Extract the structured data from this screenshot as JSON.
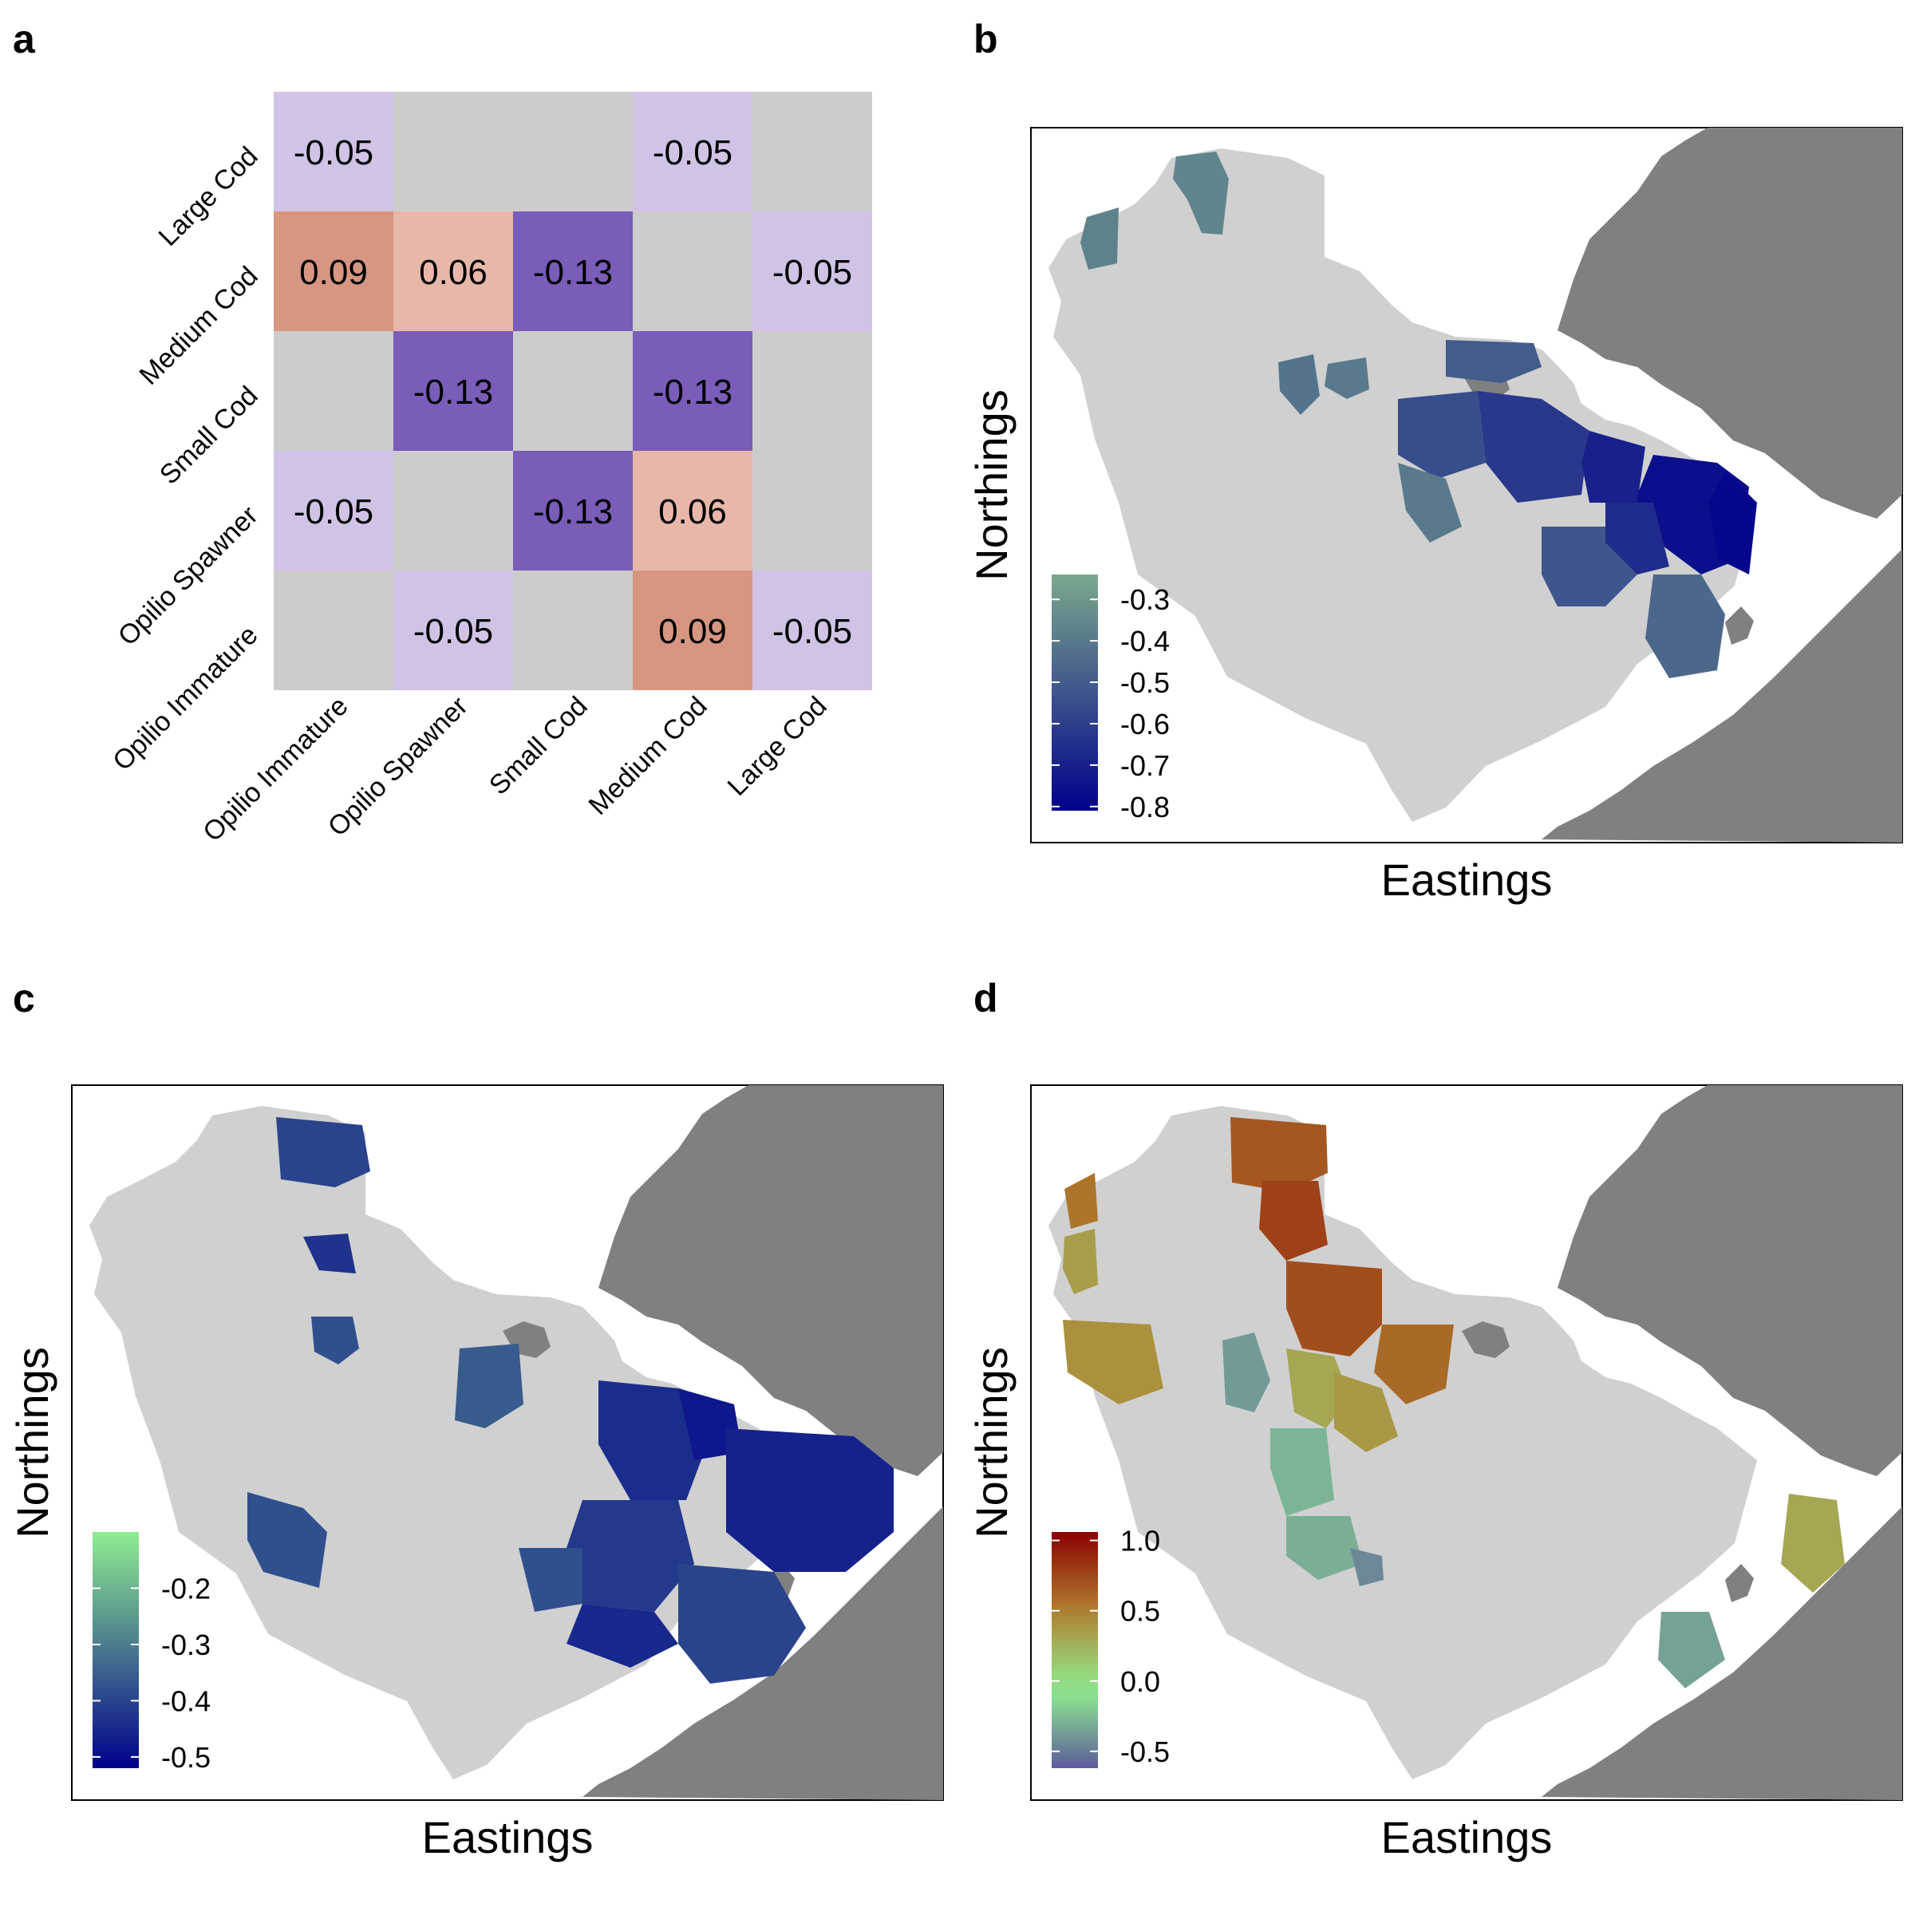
{
  "panel_labels": [
    "a",
    "b",
    "c",
    "d"
  ],
  "colors": {
    "neutral_cell": "#cccccc",
    "land": "#808080",
    "shelf": "#d0d0d0",
    "frame": "#000000"
  },
  "chart_data": [
    {
      "panel": "a",
      "type": "heatmap",
      "x_categories": [
        "Opilio Immature",
        "Opilio Spawner",
        "Small Cod",
        "Medium Cod",
        "Large Cod"
      ],
      "y_categories": [
        "Large Cod",
        "Medium Cod",
        "Small Cod",
        "Opilio Spawner",
        "Opilio Immature"
      ],
      "cells": [
        [
          -0.05,
          null,
          null,
          -0.05,
          null
        ],
        [
          0.09,
          0.06,
          -0.13,
          null,
          -0.05
        ],
        [
          null,
          -0.13,
          null,
          -0.13,
          null
        ],
        [
          -0.05,
          null,
          -0.13,
          0.06,
          null
        ],
        [
          null,
          -0.05,
          null,
          0.09,
          -0.05
        ]
      ],
      "cell_labels": [
        [
          "-0.05",
          "",
          "",
          "-0.05",
          ""
        ],
        [
          "0.09",
          "0.06",
          "-0.13",
          "",
          "-0.05"
        ],
        [
          "",
          "-0.13",
          "",
          "-0.13",
          ""
        ],
        [
          "-0.05",
          "",
          "-0.13",
          "0.06",
          ""
        ],
        [
          "",
          "-0.05",
          "",
          "0.09",
          "-0.05"
        ]
      ],
      "value_colors": {
        "-0.13": "#7a5cb9",
        "-0.05": "#d1c3e6",
        "0.06": "#e7b8aa",
        "0.09": "#d69682"
      }
    },
    {
      "panel": "b",
      "type": "heatmap",
      "xlabel": "Eastings",
      "ylabel": "Northings",
      "legend": {
        "labels": [
          "-0.3",
          "-0.4",
          "-0.5",
          "-0.6",
          "-0.7",
          "-0.8"
        ],
        "values": [
          -0.3,
          -0.4,
          -0.5,
          -0.6,
          -0.7,
          -0.8
        ],
        "range": [
          -0.81,
          -0.24
        ],
        "low_color": "#00008b",
        "high_color": "#7aa98c"
      },
      "regions": [
        {
          "id": "nw-1",
          "value": -0.36
        },
        {
          "id": "nw-2",
          "value": -0.37
        },
        {
          "id": "mid-1",
          "value": -0.42
        },
        {
          "id": "mid-2",
          "value": -0.4
        },
        {
          "id": "se-band-1",
          "value": -0.5
        },
        {
          "id": "se-band-2",
          "value": -0.55
        },
        {
          "id": "se-band-3",
          "value": -0.62
        },
        {
          "id": "se-band-4",
          "value": -0.7
        },
        {
          "id": "se-band-5",
          "value": -0.76
        },
        {
          "id": "se-band-6",
          "value": -0.79
        },
        {
          "id": "se-band-7",
          "value": -0.46
        },
        {
          "id": "se-band-8",
          "value": -0.4
        },
        {
          "id": "se-band-9",
          "value": -0.52
        },
        {
          "id": "se-band-10",
          "value": -0.66
        }
      ]
    },
    {
      "panel": "c",
      "type": "heatmap",
      "xlabel": "Eastings",
      "ylabel": "Northings",
      "legend": {
        "labels": [
          "-0.2",
          "-0.3",
          "-0.4",
          "-0.5"
        ],
        "values": [
          -0.2,
          -0.3,
          -0.4,
          -0.5
        ],
        "range": [
          -0.52,
          -0.1
        ],
        "low_color": "#00008b",
        "high_color": "#90ee90"
      },
      "regions": [
        {
          "id": "north-1",
          "value": -0.4
        },
        {
          "id": "north-2",
          "value": -0.43
        },
        {
          "id": "north-3",
          "value": -0.38
        },
        {
          "id": "mid-1",
          "value": -0.36
        },
        {
          "id": "west-1",
          "value": -0.38
        },
        {
          "id": "se-1",
          "value": -0.44
        },
        {
          "id": "se-2",
          "value": -0.48
        },
        {
          "id": "se-3",
          "value": -0.46
        },
        {
          "id": "se-4",
          "value": -0.42
        },
        {
          "id": "se-5",
          "value": -0.4
        },
        {
          "id": "se-6",
          "value": -0.45
        },
        {
          "id": "se-7",
          "value": -0.38
        }
      ]
    },
    {
      "panel": "d",
      "type": "heatmap",
      "xlabel": "Eastings",
      "ylabel": "Northings",
      "legend": {
        "labels": [
          "1.0",
          "0.5",
          "0.0",
          "-0.5"
        ],
        "values": [
          1.0,
          0.5,
          0.0,
          -0.5
        ],
        "range": [
          -0.62,
          1.06
        ],
        "stops": [
          "#8b0000",
          "#b08030",
          "#90ee90",
          "#5c5c9c"
        ]
      },
      "regions": [
        {
          "id": "north-1",
          "value": 0.68
        },
        {
          "id": "north-2",
          "value": 0.78
        },
        {
          "id": "north-3",
          "value": 0.72
        },
        {
          "id": "north-4",
          "value": 0.6
        },
        {
          "id": "west-1",
          "value": 0.55
        },
        {
          "id": "west-2",
          "value": 0.35
        },
        {
          "id": "west-3",
          "value": 0.42
        },
        {
          "id": "mid-1",
          "value": 0.3
        },
        {
          "id": "mid-2",
          "value": 0.38
        },
        {
          "id": "mid-3",
          "value": -0.38
        },
        {
          "id": "mid-4",
          "value": -0.28
        },
        {
          "id": "mid-5",
          "value": -0.3
        },
        {
          "id": "mid-6",
          "value": -0.45
        },
        {
          "id": "se-1",
          "value": 0.3
        },
        {
          "id": "se-2",
          "value": -0.35
        }
      ]
    }
  ]
}
